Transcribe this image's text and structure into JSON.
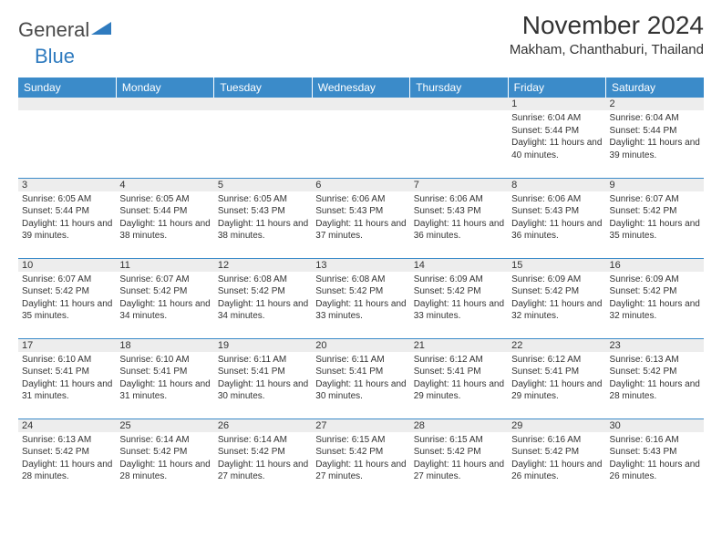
{
  "logo": {
    "text1": "General",
    "text2": "Blue"
  },
  "title": "November 2024",
  "location": "Makham, Chanthaburi, Thailand",
  "colors": {
    "header_bg": "#3b8bc9",
    "header_text": "#ffffff",
    "daynum_bg": "#ededed",
    "border": "#3b8bc9",
    "body_text": "#333333",
    "logo_gray": "#4a4a4a",
    "logo_blue": "#2f7bbf",
    "page_bg": "#ffffff"
  },
  "weekdays": [
    "Sunday",
    "Monday",
    "Tuesday",
    "Wednesday",
    "Thursday",
    "Friday",
    "Saturday"
  ],
  "weeks": [
    [
      null,
      null,
      null,
      null,
      null,
      {
        "n": "1",
        "sr": "6:04 AM",
        "ss": "5:44 PM",
        "dl": "11 hours and 40 minutes."
      },
      {
        "n": "2",
        "sr": "6:04 AM",
        "ss": "5:44 PM",
        "dl": "11 hours and 39 minutes."
      }
    ],
    [
      {
        "n": "3",
        "sr": "6:05 AM",
        "ss": "5:44 PM",
        "dl": "11 hours and 39 minutes."
      },
      {
        "n": "4",
        "sr": "6:05 AM",
        "ss": "5:44 PM",
        "dl": "11 hours and 38 minutes."
      },
      {
        "n": "5",
        "sr": "6:05 AM",
        "ss": "5:43 PM",
        "dl": "11 hours and 38 minutes."
      },
      {
        "n": "6",
        "sr": "6:06 AM",
        "ss": "5:43 PM",
        "dl": "11 hours and 37 minutes."
      },
      {
        "n": "7",
        "sr": "6:06 AM",
        "ss": "5:43 PM",
        "dl": "11 hours and 36 minutes."
      },
      {
        "n": "8",
        "sr": "6:06 AM",
        "ss": "5:43 PM",
        "dl": "11 hours and 36 minutes."
      },
      {
        "n": "9",
        "sr": "6:07 AM",
        "ss": "5:42 PM",
        "dl": "11 hours and 35 minutes."
      }
    ],
    [
      {
        "n": "10",
        "sr": "6:07 AM",
        "ss": "5:42 PM",
        "dl": "11 hours and 35 minutes."
      },
      {
        "n": "11",
        "sr": "6:07 AM",
        "ss": "5:42 PM",
        "dl": "11 hours and 34 minutes."
      },
      {
        "n": "12",
        "sr": "6:08 AM",
        "ss": "5:42 PM",
        "dl": "11 hours and 34 minutes."
      },
      {
        "n": "13",
        "sr": "6:08 AM",
        "ss": "5:42 PM",
        "dl": "11 hours and 33 minutes."
      },
      {
        "n": "14",
        "sr": "6:09 AM",
        "ss": "5:42 PM",
        "dl": "11 hours and 33 minutes."
      },
      {
        "n": "15",
        "sr": "6:09 AM",
        "ss": "5:42 PM",
        "dl": "11 hours and 32 minutes."
      },
      {
        "n": "16",
        "sr": "6:09 AM",
        "ss": "5:42 PM",
        "dl": "11 hours and 32 minutes."
      }
    ],
    [
      {
        "n": "17",
        "sr": "6:10 AM",
        "ss": "5:41 PM",
        "dl": "11 hours and 31 minutes."
      },
      {
        "n": "18",
        "sr": "6:10 AM",
        "ss": "5:41 PM",
        "dl": "11 hours and 31 minutes."
      },
      {
        "n": "19",
        "sr": "6:11 AM",
        "ss": "5:41 PM",
        "dl": "11 hours and 30 minutes."
      },
      {
        "n": "20",
        "sr": "6:11 AM",
        "ss": "5:41 PM",
        "dl": "11 hours and 30 minutes."
      },
      {
        "n": "21",
        "sr": "6:12 AM",
        "ss": "5:41 PM",
        "dl": "11 hours and 29 minutes."
      },
      {
        "n": "22",
        "sr": "6:12 AM",
        "ss": "5:41 PM",
        "dl": "11 hours and 29 minutes."
      },
      {
        "n": "23",
        "sr": "6:13 AM",
        "ss": "5:42 PM",
        "dl": "11 hours and 28 minutes."
      }
    ],
    [
      {
        "n": "24",
        "sr": "6:13 AM",
        "ss": "5:42 PM",
        "dl": "11 hours and 28 minutes."
      },
      {
        "n": "25",
        "sr": "6:14 AM",
        "ss": "5:42 PM",
        "dl": "11 hours and 28 minutes."
      },
      {
        "n": "26",
        "sr": "6:14 AM",
        "ss": "5:42 PM",
        "dl": "11 hours and 27 minutes."
      },
      {
        "n": "27",
        "sr": "6:15 AM",
        "ss": "5:42 PM",
        "dl": "11 hours and 27 minutes."
      },
      {
        "n": "28",
        "sr": "6:15 AM",
        "ss": "5:42 PM",
        "dl": "11 hours and 27 minutes."
      },
      {
        "n": "29",
        "sr": "6:16 AM",
        "ss": "5:42 PM",
        "dl": "11 hours and 26 minutes."
      },
      {
        "n": "30",
        "sr": "6:16 AM",
        "ss": "5:43 PM",
        "dl": "11 hours and 26 minutes."
      }
    ]
  ],
  "labels": {
    "sunrise": "Sunrise: ",
    "sunset": "Sunset: ",
    "daylight": "Daylight: "
  }
}
